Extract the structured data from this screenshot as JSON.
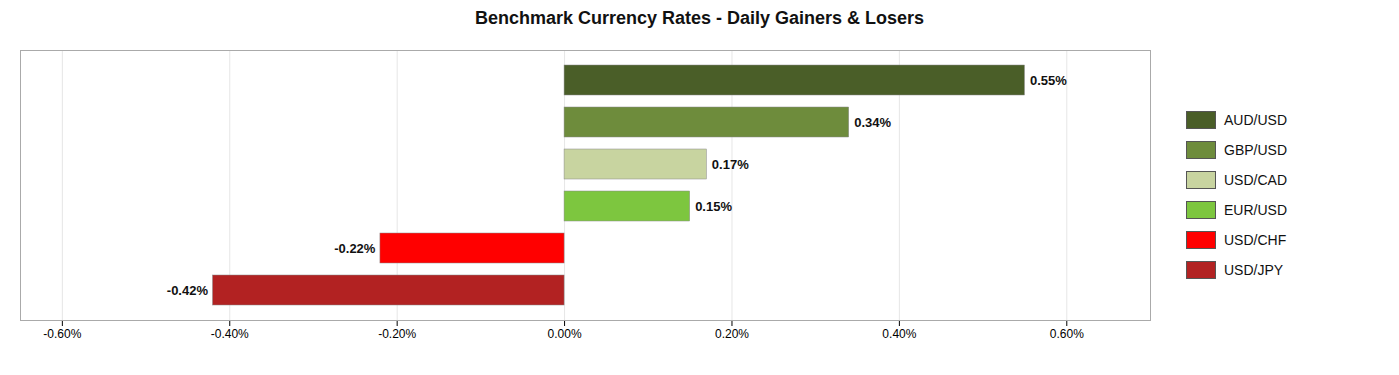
{
  "chart_data": {
    "type": "bar",
    "orientation": "horizontal",
    "title": "Benchmark Currency Rates - Daily Gainers & Losers",
    "categories": [
      "AUD/USD",
      "GBP/USD",
      "USD/CAD",
      "EUR/USD",
      "USD/CHF",
      "USD/JPY"
    ],
    "values": [
      0.55,
      0.34,
      0.17,
      0.15,
      -0.22,
      -0.42
    ],
    "value_labels": [
      "0.55%",
      "0.34%",
      "0.17%",
      "0.15%",
      "-0.22%",
      "-0.42%"
    ],
    "colors": [
      "#4a5e28",
      "#6e8c3c",
      "#c8d4a0",
      "#7dc63f",
      "#ff0000",
      "#b22222"
    ],
    "data_labels": true,
    "xlim": [
      -0.65,
      0.7
    ],
    "xticks": [
      {
        "value": -0.6,
        "label": "-0.60%"
      },
      {
        "value": -0.4,
        "label": "-0.40%"
      },
      {
        "value": -0.2,
        "label": "-0.20%"
      },
      {
        "value": 0.0,
        "label": "0.00%"
      },
      {
        "value": 0.2,
        "label": "0.20%"
      },
      {
        "value": 0.4,
        "label": "0.40%"
      },
      {
        "value": 0.6,
        "label": "0.60%"
      }
    ],
    "grid": true,
    "legend": "right",
    "tick_labels": "x"
  }
}
